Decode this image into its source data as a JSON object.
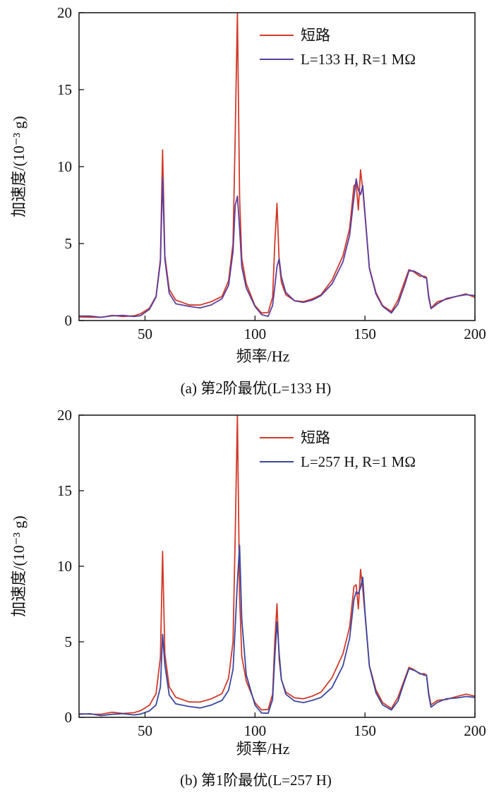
{
  "chart_data": [
    {
      "type": "line",
      "caption": "(a) 第2阶最优(L=133 H)",
      "xlabel": "频率/Hz",
      "ylabel": "加速度/(10⁻³ g)",
      "xlim": [
        20,
        200
      ],
      "ylim": [
        0,
        20
      ],
      "xticks": [
        "50",
        "100",
        "150",
        "200"
      ],
      "yticks": [
        "0",
        "5",
        "10",
        "15",
        "20"
      ],
      "legend_position": "top-right",
      "series": [
        {
          "name": "短路",
          "color": "#d23a2a",
          "x": [
            20,
            25,
            30,
            35,
            40,
            45,
            48,
            52,
            55,
            57,
            58,
            59,
            61,
            64,
            70,
            75,
            80,
            85,
            88,
            90,
            91,
            92,
            93,
            94,
            96,
            100,
            103,
            106,
            108,
            109,
            110,
            111,
            112,
            114,
            118,
            122,
            126,
            130,
            135,
            140,
            143,
            145,
            146,
            147,
            148,
            149,
            150,
            152,
            155,
            158,
            162,
            165,
            168,
            170,
            172,
            175,
            177,
            178,
            179,
            180,
            183,
            187,
            192,
            196,
            200
          ],
          "y": [
            0.2,
            0.25,
            0.2,
            0.3,
            0.3,
            0.3,
            0.4,
            0.8,
            1.6,
            4.0,
            11.1,
            4.2,
            2.0,
            1.3,
            1.05,
            1.0,
            1.2,
            1.6,
            2.6,
            5.0,
            12.0,
            20.0,
            8.0,
            4.0,
            2.4,
            1.0,
            0.5,
            0.5,
            1.5,
            5.0,
            7.6,
            3.8,
            2.5,
            1.7,
            1.3,
            1.2,
            1.4,
            1.7,
            2.6,
            4.2,
            6.0,
            8.8,
            8.9,
            7.2,
            9.8,
            8.5,
            6.8,
            3.4,
            1.8,
            1.0,
            0.6,
            1.3,
            2.5,
            3.3,
            3.2,
            2.9,
            2.9,
            2.8,
            1.6,
            0.8,
            1.2,
            1.4,
            1.6,
            1.7,
            1.5
          ]
        },
        {
          "name": "L=133 H, R=1 MΩ",
          "color": "#5b3f9e",
          "x": [
            20,
            25,
            30,
            35,
            40,
            45,
            48,
            52,
            55,
            57,
            58,
            59,
            61,
            64,
            70,
            75,
            80,
            85,
            88,
            90,
            91,
            92,
            93,
            94,
            96,
            100,
            103,
            106,
            108,
            109,
            110,
            111,
            112,
            114,
            118,
            122,
            126,
            130,
            135,
            140,
            143,
            145,
            146,
            147,
            148,
            149,
            150,
            152,
            155,
            158,
            162,
            165,
            168,
            170,
            172,
            175,
            177,
            178,
            179,
            180,
            183,
            187,
            192,
            196,
            200
          ],
          "y": [
            0.3,
            0.25,
            0.25,
            0.3,
            0.3,
            0.3,
            0.35,
            0.7,
            1.5,
            3.8,
            9.3,
            4.0,
            1.8,
            1.1,
            0.9,
            0.85,
            1.0,
            1.4,
            2.3,
            4.5,
            7.5,
            8.1,
            6.0,
            3.5,
            2.1,
            0.9,
            0.4,
            0.3,
            1.0,
            2.2,
            3.5,
            4.0,
            2.8,
            1.8,
            1.3,
            1.2,
            1.3,
            1.6,
            2.4,
            3.8,
            5.5,
            8.0,
            9.2,
            8.5,
            8.2,
            8.8,
            7.0,
            3.4,
            1.7,
            0.9,
            0.5,
            1.1,
            2.3,
            3.2,
            3.2,
            3.0,
            2.8,
            2.8,
            1.5,
            0.8,
            1.1,
            1.4,
            1.6,
            1.7,
            1.6
          ]
        }
      ]
    },
    {
      "type": "line",
      "caption": "(b) 第1阶最优(L=257 H)",
      "xlabel": "频率/Hz",
      "ylabel": "加速度/(10⁻³ g)",
      "xlim": [
        20,
        200
      ],
      "ylim": [
        0,
        20
      ],
      "xticks": [
        "50",
        "100",
        "150",
        "200"
      ],
      "yticks": [
        "0",
        "5",
        "10",
        "15",
        "20"
      ],
      "legend_position": "top-right",
      "series": [
        {
          "name": "短路",
          "color": "#d23a2a",
          "x": [
            20,
            25,
            30,
            35,
            40,
            45,
            48,
            52,
            55,
            57,
            58,
            59,
            61,
            64,
            70,
            75,
            80,
            85,
            88,
            90,
            91,
            92,
            93,
            94,
            96,
            100,
            103,
            106,
            108,
            109,
            110,
            111,
            112,
            114,
            118,
            122,
            126,
            130,
            135,
            140,
            143,
            145,
            146,
            147,
            148,
            149,
            150,
            152,
            155,
            158,
            162,
            165,
            168,
            170,
            172,
            175,
            177,
            178,
            179,
            180,
            183,
            187,
            192,
            196,
            200
          ],
          "y": [
            0.2,
            0.25,
            0.2,
            0.3,
            0.3,
            0.3,
            0.4,
            0.8,
            1.6,
            4.0,
            11.0,
            4.2,
            2.0,
            1.3,
            1.05,
            1.0,
            1.2,
            1.6,
            2.6,
            5.0,
            12.0,
            20.0,
            8.0,
            4.0,
            2.4,
            1.0,
            0.5,
            0.5,
            1.5,
            5.0,
            7.5,
            3.8,
            2.5,
            1.7,
            1.3,
            1.2,
            1.4,
            1.7,
            2.6,
            4.2,
            6.0,
            8.7,
            8.8,
            7.2,
            9.8,
            8.5,
            6.8,
            3.4,
            1.8,
            1.0,
            0.6,
            1.3,
            2.5,
            3.3,
            3.2,
            2.9,
            2.9,
            2.8,
            1.6,
            0.8,
            1.1,
            1.2,
            1.4,
            1.5,
            1.4
          ]
        },
        {
          "name": "L=257 H, R=1 MΩ",
          "color": "#3b47a0",
          "x": [
            20,
            25,
            30,
            35,
            40,
            45,
            48,
            52,
            55,
            57,
            58,
            59,
            61,
            64,
            70,
            75,
            80,
            85,
            88,
            90,
            91,
            92,
            93,
            94,
            96,
            100,
            103,
            106,
            108,
            109,
            110,
            111,
            112,
            114,
            118,
            122,
            126,
            130,
            135,
            140,
            143,
            145,
            146,
            147,
            148,
            149,
            150,
            152,
            155,
            158,
            162,
            165,
            168,
            170,
            172,
            175,
            177,
            178,
            179,
            180,
            183,
            187,
            192,
            196,
            200
          ],
          "y": [
            0.2,
            0.2,
            0.15,
            0.2,
            0.2,
            0.2,
            0.25,
            0.4,
            0.8,
            2.0,
            5.5,
            3.5,
            1.5,
            0.9,
            0.7,
            0.65,
            0.8,
            1.1,
            1.8,
            3.2,
            6.0,
            9.0,
            11.4,
            6.5,
            2.8,
            0.8,
            0.3,
            0.3,
            1.2,
            4.0,
            6.3,
            4.2,
            2.5,
            1.5,
            1.1,
            1.0,
            1.1,
            1.3,
            2.0,
            3.4,
            5.2,
            7.8,
            8.3,
            8.2,
            8.6,
            9.3,
            7.0,
            3.4,
            1.6,
            0.8,
            0.5,
            1.1,
            2.4,
            3.2,
            3.1,
            2.9,
            2.8,
            2.8,
            1.5,
            0.7,
            1.0,
            1.2,
            1.3,
            1.4,
            1.3
          ]
        }
      ]
    }
  ]
}
